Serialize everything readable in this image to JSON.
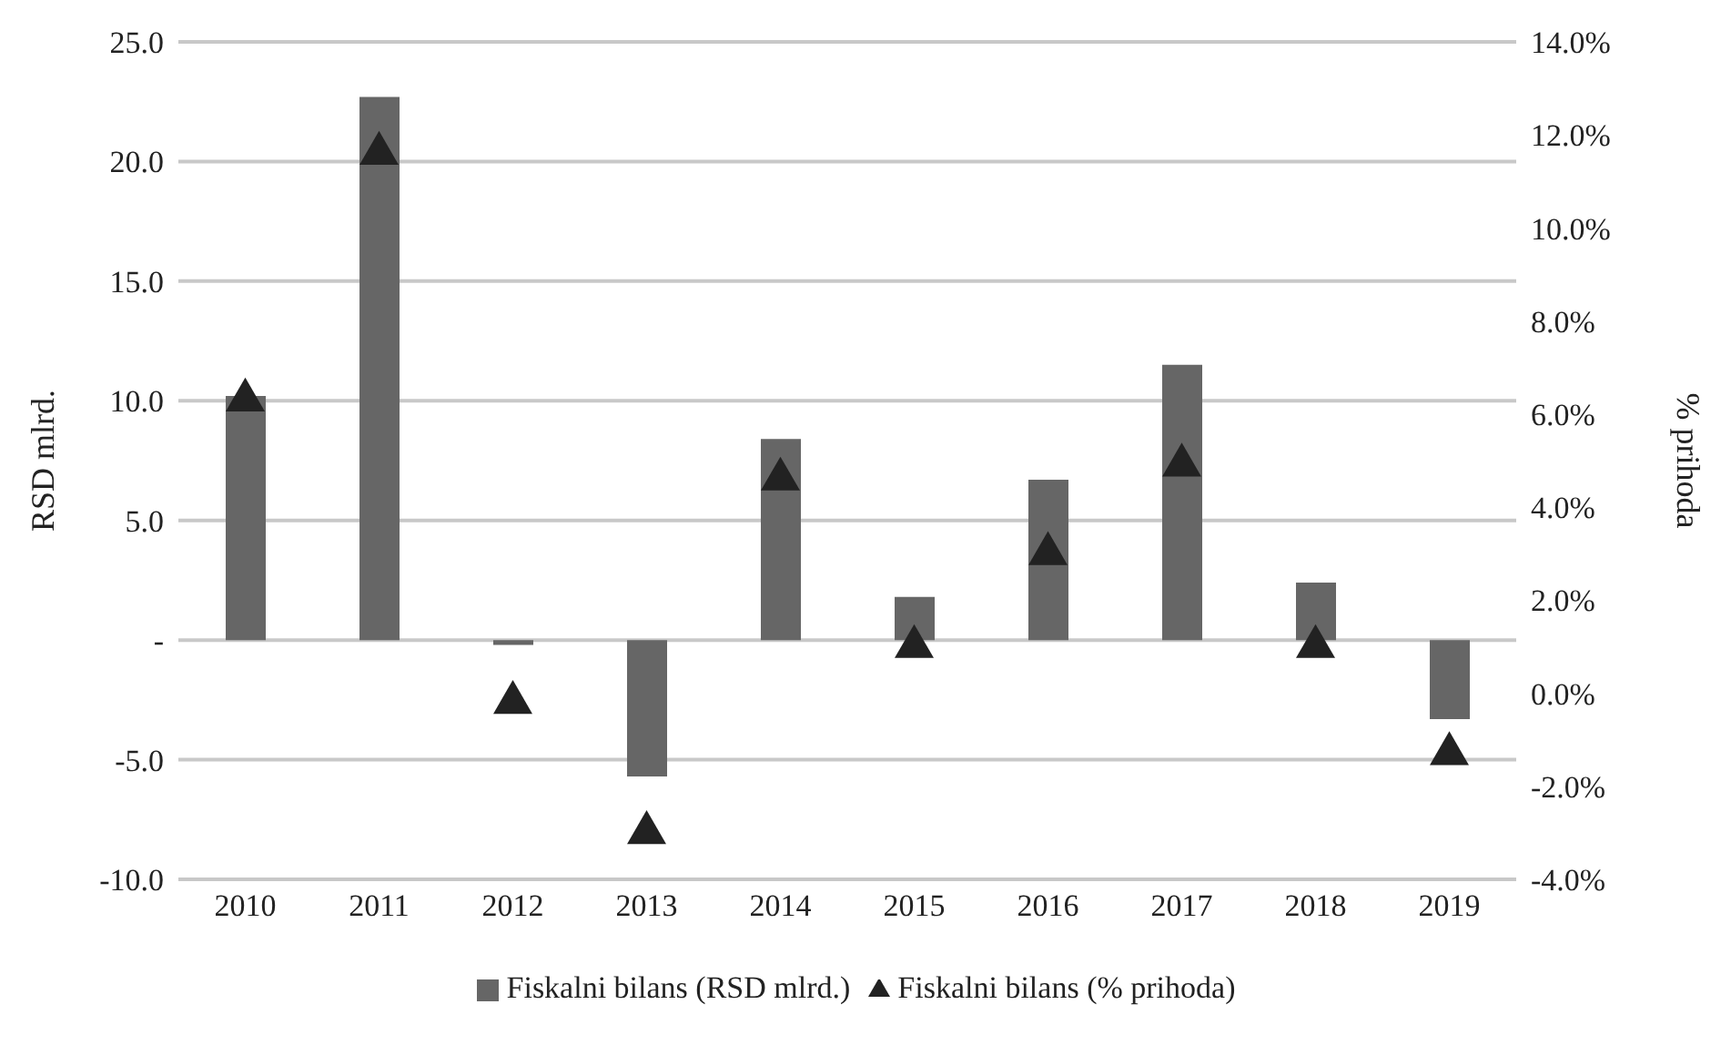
{
  "chart_data": {
    "type": "bar",
    "categories": [
      "2010",
      "2011",
      "2012",
      "2013",
      "2014",
      "2015",
      "2016",
      "2017",
      "2018",
      "2019"
    ],
    "series": [
      {
        "name": "Fiskalni bilans (RSD mlrd.)",
        "color": "#666666",
        "values": [
          10.2,
          22.7,
          -0.2,
          -5.7,
          8.4,
          1.8,
          6.7,
          11.5,
          2.4,
          -3.3
        ]
      },
      {
        "name": "Fiskalni bilans (% prihoda)",
        "type": "scatter",
        "axis": "y2",
        "marker": "triangle",
        "color": "#222222",
        "values": [
          6.3,
          11.6,
          -0.2,
          -3.0,
          4.6,
          1.0,
          3.0,
          4.9,
          1.0,
          -1.3
        ]
      }
    ],
    "ylabel": "RSD mlrd.",
    "y2label": "% prihoda",
    "ylim": [
      -10,
      25
    ],
    "yticks": [
      {
        "value": -10,
        "label": "-10.0"
      },
      {
        "value": -5,
        "label": "-5.0"
      },
      {
        "value": 0,
        "label": "-"
      },
      {
        "value": 5,
        "label": "5.0"
      },
      {
        "value": 10,
        "label": "10.0"
      },
      {
        "value": 15,
        "label": "15.0"
      },
      {
        "value": 20,
        "label": "20.0"
      },
      {
        "value": 25,
        "label": "25.0"
      }
    ],
    "y2lim": [
      -4,
      14
    ],
    "y2ticks": [
      {
        "value": -4,
        "label": "-4.0%"
      },
      {
        "value": -2,
        "label": "-2.0%"
      },
      {
        "value": 0,
        "label": "0.0%"
      },
      {
        "value": 2,
        "label": "2.0%"
      },
      {
        "value": 4,
        "label": "4.0%"
      },
      {
        "value": 6,
        "label": "6.0%"
      },
      {
        "value": 8,
        "label": "8.0%"
      },
      {
        "value": 10,
        "label": "10.0%"
      },
      {
        "value": 12,
        "label": "12.0%"
      },
      {
        "value": 14,
        "label": "14.0%"
      }
    ],
    "grid": "y",
    "legend": "bottom"
  }
}
